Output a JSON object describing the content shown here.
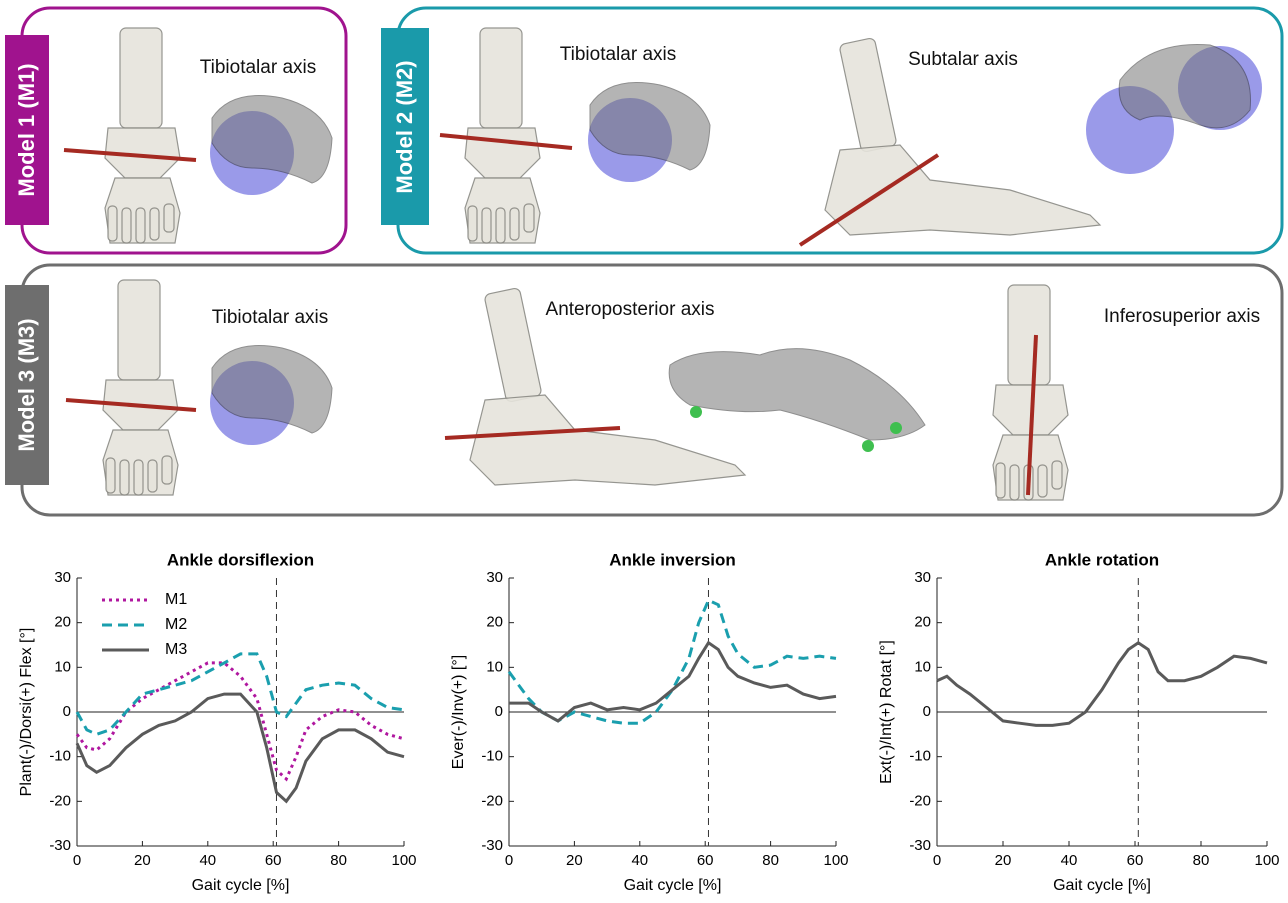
{
  "models": [
    {
      "label": "Model 1 (M1)",
      "axes": [
        "Tibiotalar axis"
      ]
    },
    {
      "label": "Model 2 (M2)",
      "axes": [
        "Tibiotalar axis",
        "Subtalar axis"
      ]
    },
    {
      "label": "Model 3 (M3)",
      "axes": [
        "Tibiotalar axis",
        "Anteroposterior axis",
        "Inferosuperior axis"
      ]
    }
  ],
  "chart_data": [
    {
      "type": "line",
      "title": "Ankle dorsiflexion",
      "x_label": "Gait cycle [%]",
      "y_label": "Plant(-)/Dorsi(+) Flex [°]",
      "x": [
        0,
        3,
        6,
        10,
        15,
        20,
        25,
        30,
        35,
        40,
        45,
        50,
        55,
        58,
        61,
        64,
        67,
        70,
        75,
        80,
        85,
        90,
        95,
        100
      ],
      "xlim": [
        0,
        100
      ],
      "xticks": [
        0,
        20,
        40,
        60,
        80,
        100
      ],
      "ylim": [
        -30,
        30
      ],
      "yticks": [
        -30,
        -20,
        -10,
        0,
        10,
        20,
        30
      ],
      "hline": 0,
      "vline": 61,
      "legend": "upper left",
      "series": [
        {
          "name": "M1",
          "color": "#b0179f",
          "style": "dotted",
          "values": [
            -5,
            -8,
            -8.5,
            -6,
            0,
            3,
            5,
            7,
            9,
            11,
            11,
            8,
            3,
            -5,
            -13,
            -15,
            -10,
            -4,
            -1,
            0.5,
            0,
            -3,
            -5,
            -6
          ]
        },
        {
          "name": "M2",
          "color": "#1a9fae",
          "style": "dashed",
          "values": [
            0,
            -4,
            -5,
            -4,
            0,
            4,
            5,
            6,
            7,
            9,
            11,
            13,
            13,
            8,
            0,
            -1,
            2,
            5,
            6,
            6.5,
            6,
            3,
            1,
            0.5
          ]
        },
        {
          "name": "M3",
          "color": "#5a5a5a",
          "style": "solid",
          "values": [
            -7,
            -12,
            -13.5,
            -12,
            -8,
            -5,
            -3,
            -2,
            0,
            3,
            4,
            4,
            0,
            -8,
            -18,
            -20,
            -17,
            -11,
            -6,
            -4,
            -4,
            -6,
            -9,
            -10
          ]
        }
      ]
    },
    {
      "type": "line",
      "title": "Ankle inversion",
      "x_label": "Gait cycle [%]",
      "y_label": "Ever(-)/Inv(+) [°]",
      "x": [
        0,
        3,
        6,
        10,
        15,
        20,
        25,
        30,
        35,
        40,
        45,
        50,
        55,
        58,
        61,
        64,
        67,
        70,
        75,
        80,
        85,
        90,
        95,
        100
      ],
      "xlim": [
        0,
        100
      ],
      "xticks": [
        0,
        20,
        40,
        60,
        80,
        100
      ],
      "ylim": [
        -30,
        30
      ],
      "yticks": [
        -30,
        -20,
        -10,
        0,
        10,
        20,
        30
      ],
      "hline": 0,
      "vline": 61,
      "series": [
        {
          "color": "#1a9fae",
          "style": "dashed",
          "values": [
            9,
            6,
            3,
            0,
            -2,
            0,
            -1,
            -2,
            -2.5,
            -2.5,
            0,
            5,
            12,
            20,
            25,
            24,
            17,
            13,
            10,
            10.5,
            12.5,
            12,
            12.5,
            12
          ]
        },
        {
          "color": "#5a5a5a",
          "style": "solid",
          "values": [
            2,
            2,
            2,
            0,
            -2,
            1,
            2,
            0.5,
            1,
            0.5,
            2,
            5,
            8,
            12,
            15.5,
            14,
            10,
            8,
            6.5,
            5.5,
            6,
            4,
            3,
            3.5
          ]
        }
      ]
    },
    {
      "type": "line",
      "title": "Ankle rotation",
      "x_label": "Gait cycle [%]",
      "y_label": "Ext(-)/Int(+) Rotat [°]",
      "x": [
        0,
        3,
        6,
        10,
        15,
        20,
        25,
        30,
        35,
        40,
        45,
        50,
        55,
        58,
        61,
        64,
        67,
        70,
        75,
        80,
        85,
        90,
        95,
        100
      ],
      "xlim": [
        0,
        100
      ],
      "xticks": [
        0,
        20,
        40,
        60,
        80,
        100
      ],
      "ylim": [
        -30,
        30
      ],
      "yticks": [
        -30,
        -20,
        -10,
        0,
        10,
        20,
        30
      ],
      "hline": 0,
      "vline": 61,
      "series": [
        {
          "color": "#5a5a5a",
          "style": "solid",
          "values": [
            7,
            8,
            6,
            4,
            1,
            -2,
            -2.5,
            -3,
            -3,
            -2.5,
            0,
            5,
            11,
            14,
            15.5,
            14,
            9,
            7,
            7,
            8,
            10,
            12.5,
            12,
            11
          ]
        }
      ]
    }
  ]
}
